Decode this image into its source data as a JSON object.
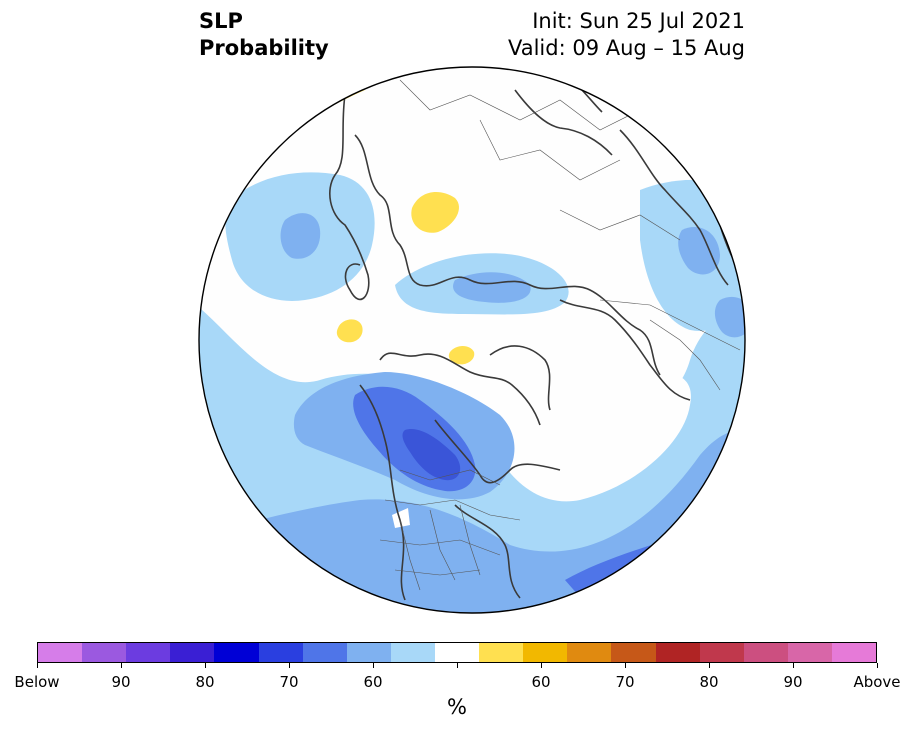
{
  "header": {
    "variable": "SLP",
    "product": "Probability",
    "init": "Init: Sun 25 Jul 2021",
    "valid": "Valid: 09 Aug – 15 Aug"
  },
  "colorbar": {
    "unit": "%",
    "colors": [
      "#d67de9",
      "#9b59e0",
      "#6c3ce0",
      "#3a1fd4",
      "#0000d6",
      "#2a3fe0",
      "#4f75e8",
      "#7fb1f0",
      "#a8d8f8",
      "#ffffff",
      "#ffe050",
      "#f2b800",
      "#e08a10",
      "#c65818",
      "#b02424",
      "#c0384c",
      "#cc4f80",
      "#d866a8",
      "#e67ad8"
    ],
    "labels": [
      "Below",
      "90",
      "80",
      "70",
      "60",
      "60",
      "70",
      "80",
      "90",
      "Above"
    ]
  },
  "map": {
    "projection": "North Polar Stereographic",
    "legend_categories": [
      "below-normal probability (blue)",
      "above-normal probability (yellow)"
    ]
  }
}
